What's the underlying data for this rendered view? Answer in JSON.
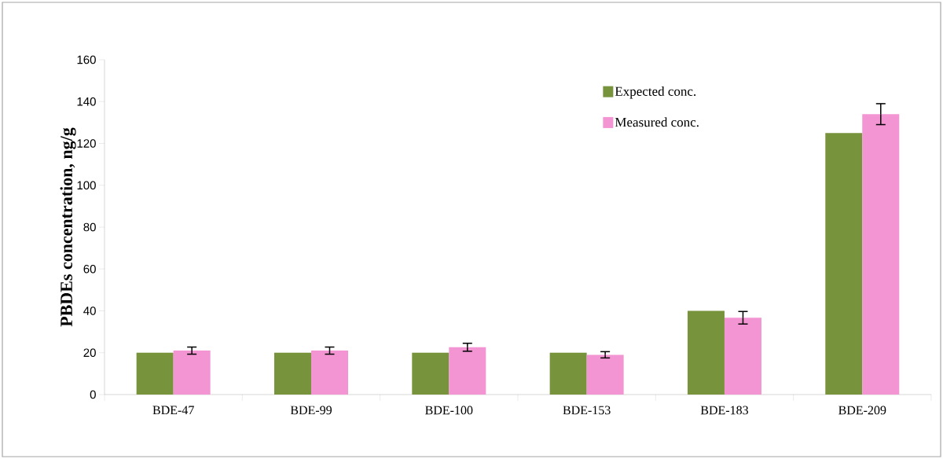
{
  "chart_data": {
    "type": "bar",
    "ylabel": "PBDEs concentration, ng/g",
    "categories": [
      "BDE-47",
      "BDE-99",
      "BDE-100",
      "BDE-153",
      "BDE-183",
      "BDE-209"
    ],
    "series": [
      {
        "name": "Expected conc.",
        "color": "#77933c",
        "values": [
          20,
          20,
          20,
          20,
          40,
          125
        ]
      },
      {
        "name": "Measured conc.",
        "color": "#f394d3",
        "values": [
          21,
          21,
          22.6,
          19,
          36.7,
          134
        ],
        "errors": [
          1.7,
          1.7,
          1.9,
          1.5,
          3,
          5
        ]
      }
    ],
    "ylim": [
      0,
      160
    ],
    "yticks": [
      0,
      20,
      40,
      60,
      80,
      100,
      120,
      140,
      160
    ],
    "legend": "top right"
  }
}
